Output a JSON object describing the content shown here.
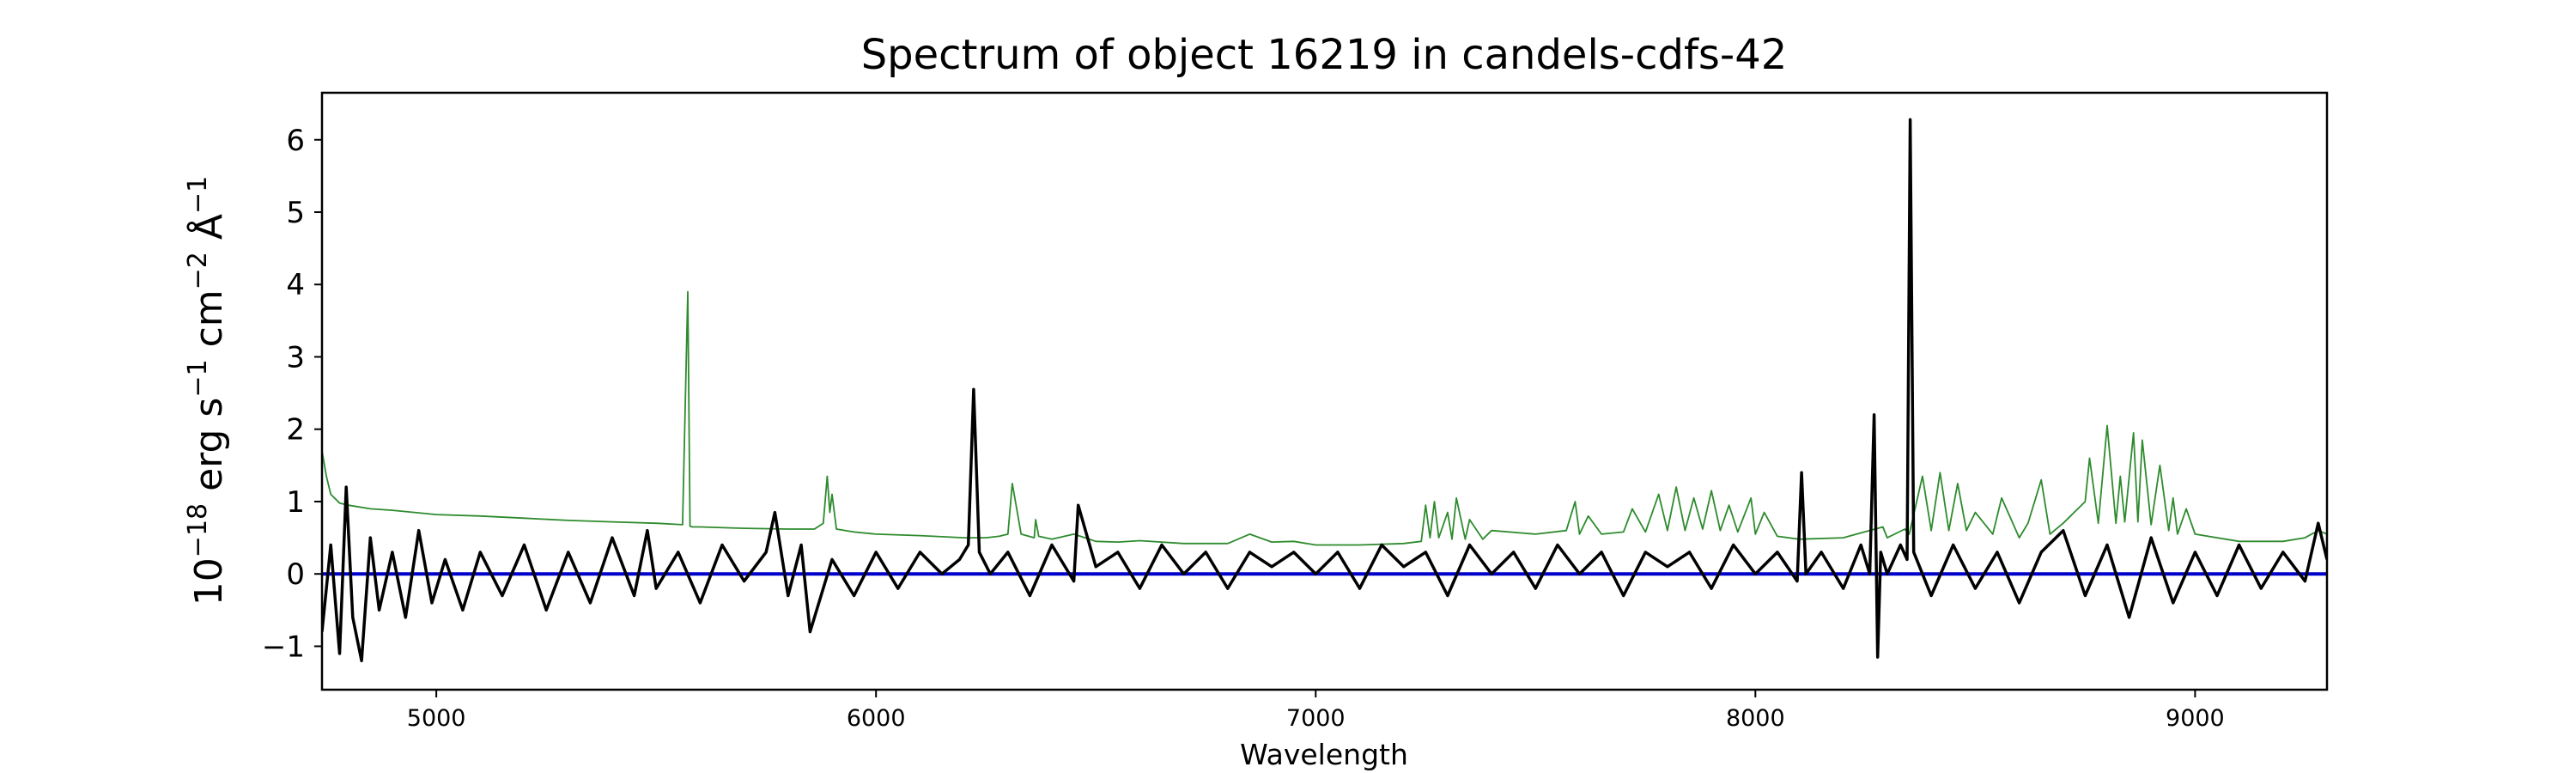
{
  "chart_data": {
    "type": "line",
    "title": "Spectrum of object 16219 in candels-cdfs-42",
    "xlabel": "Wavelength",
    "ylabel": {
      "base": "10",
      "exp1": "−18",
      "erg": " erg s",
      "exp2": "−1",
      "cm": " cm",
      "exp3": "−2",
      "ang": " Å",
      "exp4": "−1"
    },
    "xlim": [
      4740,
      9300
    ],
    "ylim": [
      -1.6,
      6.65
    ],
    "x_ticks": [
      5000,
      6000,
      7000,
      8000,
      9000
    ],
    "x_tick_labels": [
      "5000",
      "6000",
      "7000",
      "8000",
      "9000"
    ],
    "y_ticks": [
      -1,
      0,
      1,
      2,
      3,
      4,
      5,
      6
    ],
    "y_tick_labels": [
      "−1",
      "0",
      "1",
      "2",
      "3",
      "4",
      "5",
      "6"
    ],
    "grid": false,
    "legend": "none",
    "series": [
      {
        "style": "zero-line",
        "color": "#0000cc",
        "x": [
          4740,
          9300
        ],
        "values": [
          0,
          0
        ]
      },
      {
        "style": "error-spectrum",
        "color": "#2e8b2e",
        "x": [
          4740,
          4750,
          4760,
          4780,
          4800,
          4850,
          4900,
          5000,
          5100,
          5200,
          5300,
          5400,
          5500,
          5560,
          5572,
          5577,
          5582,
          5600,
          5700,
          5800,
          5860,
          5880,
          5889,
          5895,
          5900,
          5910,
          5950,
          6000,
          6100,
          6200,
          6250,
          6280,
          6300,
          6310,
          6330,
          6360,
          6363,
          6370,
          6400,
          6450,
          6500,
          6550,
          6600,
          6700,
          6800,
          6850,
          6900,
          6950,
          7000,
          7100,
          7200,
          7240,
          7250,
          7260,
          7270,
          7280,
          7300,
          7310,
          7320,
          7340,
          7350,
          7380,
          7400,
          7500,
          7570,
          7590,
          7600,
          7620,
          7650,
          7700,
          7720,
          7750,
          7780,
          7800,
          7820,
          7840,
          7860,
          7880,
          7900,
          7920,
          7940,
          7960,
          7990,
          8000,
          8020,
          8050,
          8100,
          8200,
          8290,
          8300,
          8340,
          8350,
          8380,
          8400,
          8420,
          8440,
          8460,
          8480,
          8500,
          8540,
          8560,
          8600,
          8620,
          8650,
          8670,
          8700,
          8750,
          8760,
          8780,
          8800,
          8820,
          8830,
          8840,
          8860,
          8870,
          8880,
          8900,
          8920,
          8940,
          8950,
          8960,
          8980,
          9000,
          9100,
          9200,
          9250,
          9280,
          9300
        ],
        "values": [
          1.7,
          1.35,
          1.1,
          0.98,
          0.95,
          0.9,
          0.88,
          0.82,
          0.8,
          0.77,
          0.74,
          0.72,
          0.7,
          0.68,
          3.9,
          0.66,
          0.65,
          0.65,
          0.63,
          0.62,
          0.62,
          0.7,
          1.35,
          0.85,
          1.1,
          0.62,
          0.58,
          0.55,
          0.53,
          0.5,
          0.5,
          0.52,
          0.55,
          1.25,
          0.55,
          0.5,
          0.75,
          0.52,
          0.48,
          0.55,
          0.45,
          0.44,
          0.46,
          0.42,
          0.42,
          0.55,
          0.44,
          0.45,
          0.4,
          0.4,
          0.42,
          0.45,
          0.95,
          0.5,
          1.0,
          0.5,
          0.85,
          0.48,
          1.05,
          0.48,
          0.75,
          0.48,
          0.6,
          0.55,
          0.6,
          1.0,
          0.55,
          0.8,
          0.55,
          0.58,
          0.9,
          0.58,
          1.1,
          0.6,
          1.2,
          0.6,
          1.05,
          0.62,
          1.15,
          0.6,
          0.95,
          0.58,
          1.05,
          0.55,
          0.85,
          0.52,
          0.48,
          0.5,
          0.65,
          0.5,
          0.62,
          0.55,
          1.35,
          0.6,
          1.4,
          0.6,
          1.25,
          0.6,
          0.85,
          0.55,
          1.05,
          0.5,
          0.7,
          1.3,
          0.55,
          0.7,
          1.0,
          1.6,
          0.7,
          2.05,
          0.7,
          1.35,
          0.72,
          1.95,
          0.72,
          1.85,
          0.68,
          1.5,
          0.6,
          1.05,
          0.55,
          0.9,
          0.55,
          0.45,
          0.45,
          0.5,
          0.6,
          0.55
        ]
      },
      {
        "style": "flux-spectrum",
        "color": "#000000",
        "x": [
          4740,
          4760,
          4780,
          4795,
          4810,
          4830,
          4850,
          4870,
          4900,
          4930,
          4960,
          4990,
          5020,
          5060,
          5100,
          5150,
          5200,
          5250,
          5300,
          5350,
          5400,
          5450,
          5480,
          5500,
          5550,
          5600,
          5650,
          5700,
          5750,
          5770,
          5800,
          5830,
          5850,
          5900,
          5950,
          6000,
          6050,
          6100,
          6150,
          6190,
          6210,
          6222,
          6235,
          6260,
          6300,
          6350,
          6400,
          6450,
          6460,
          6500,
          6550,
          6600,
          6650,
          6700,
          6750,
          6800,
          6850,
          6900,
          6950,
          7000,
          7050,
          7100,
          7150,
          7200,
          7250,
          7300,
          7350,
          7400,
          7450,
          7500,
          7550,
          7600,
          7650,
          7700,
          7750,
          7800,
          7850,
          7900,
          7950,
          8000,
          8050,
          8095,
          8105,
          8115,
          8150,
          8200,
          8240,
          8260,
          8270,
          8278,
          8285,
          8300,
          8330,
          8345,
          8352,
          8360,
          8380,
          8400,
          8450,
          8500,
          8550,
          8600,
          8650,
          8700,
          8750,
          8800,
          8850,
          8900,
          8950,
          9000,
          9050,
          9100,
          9150,
          9200,
          9250,
          9280,
          9300
        ],
        "values": [
          -0.8,
          0.4,
          -1.1,
          1.2,
          -0.6,
          -1.2,
          0.5,
          -0.5,
          0.3,
          -0.6,
          0.6,
          -0.4,
          0.2,
          -0.5,
          0.3,
          -0.3,
          0.4,
          -0.5,
          0.3,
          -0.4,
          0.5,
          -0.3,
          0.6,
          -0.2,
          0.3,
          -0.4,
          0.4,
          -0.1,
          0.3,
          0.85,
          -0.3,
          0.4,
          -0.8,
          0.2,
          -0.3,
          0.3,
          -0.2,
          0.3,
          0.0,
          0.2,
          0.4,
          2.55,
          0.3,
          0.0,
          0.3,
          -0.3,
          0.4,
          -0.1,
          0.95,
          0.1,
          0.3,
          -0.2,
          0.4,
          0.0,
          0.3,
          -0.2,
          0.3,
          0.1,
          0.3,
          0.0,
          0.3,
          -0.2,
          0.4,
          0.1,
          0.3,
          -0.3,
          0.4,
          0.0,
          0.3,
          -0.2,
          0.4,
          0.0,
          0.3,
          -0.3,
          0.3,
          0.1,
          0.3,
          -0.2,
          0.4,
          0.0,
          0.3,
          -0.1,
          1.4,
          0.0,
          0.3,
          -0.2,
          0.4,
          0.0,
          2.2,
          -1.15,
          0.3,
          0.0,
          0.4,
          0.2,
          6.28,
          0.3,
          0.0,
          -0.3,
          0.4,
          -0.2,
          0.3,
          -0.4,
          0.3,
          0.6,
          -0.3,
          0.4,
          -0.6,
          0.5,
          -0.4,
          0.3,
          -0.3,
          0.4,
          -0.2,
          0.3,
          -0.1,
          0.7,
          0.2
        ]
      }
    ]
  }
}
